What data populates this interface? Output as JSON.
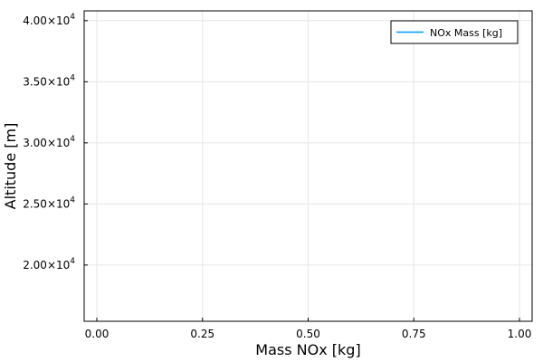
{
  "chart_data": {
    "type": "line",
    "xlabel": "Mass NOx [kg]",
    "ylabel": "Altitude [m]",
    "xlim": [
      -0.03,
      1.03
    ],
    "ylim": [
      15400,
      40800
    ],
    "grid": true,
    "legend_position": "top-right",
    "x_ticks": [
      {
        "value": 0.0,
        "label": "0.00"
      },
      {
        "value": 0.25,
        "label": "0.25"
      },
      {
        "value": 0.5,
        "label": "0.50"
      },
      {
        "value": 0.75,
        "label": "0.75"
      },
      {
        "value": 1.0,
        "label": "1.00"
      }
    ],
    "y_ticks": [
      {
        "value": 20000,
        "mantissa": "2.00×10",
        "exp": "4"
      },
      {
        "value": 25000,
        "mantissa": "2.50×10",
        "exp": "4"
      },
      {
        "value": 30000,
        "mantissa": "3.00×10",
        "exp": "4"
      },
      {
        "value": 35000,
        "mantissa": "3.50×10",
        "exp": "4"
      },
      {
        "value": 40000,
        "mantissa": "4.00×10",
        "exp": "4"
      }
    ],
    "series": [
      {
        "name": "NOx Mass [kg]",
        "color": "#009af9",
        "x": [],
        "y": []
      }
    ]
  }
}
